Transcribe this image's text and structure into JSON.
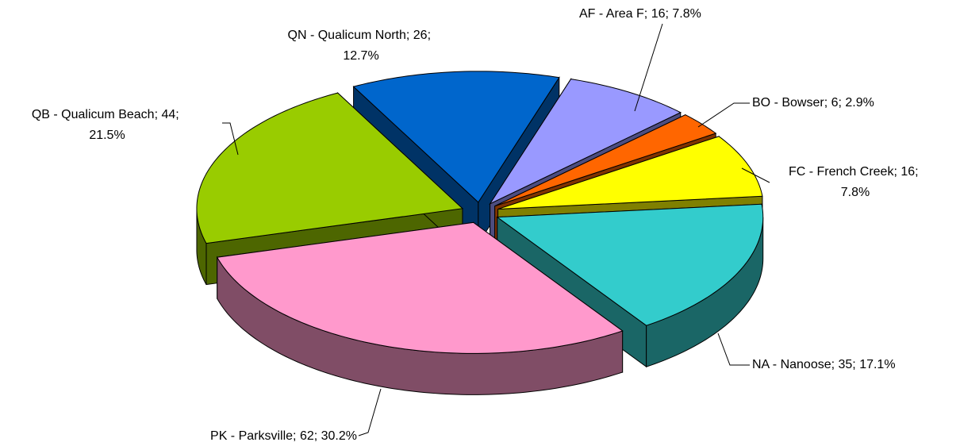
{
  "chart_data": {
    "type": "pie3d",
    "categories": [
      "QN - Qualicum North",
      "AF - Area F",
      "BO - Bowser",
      "FC - French Creek",
      "NA - Nanoose",
      "PK - Parksville",
      "QB - Qualicum Beach"
    ],
    "values": [
      26,
      16,
      6,
      16,
      35,
      62,
      44
    ],
    "percents": [
      12.7,
      7.8,
      2.9,
      7.8,
      17.1,
      30.2,
      21.5
    ],
    "percent_labels": [
      "12.7%",
      "7.8%",
      "2.9%",
      "7.8%",
      "17.1%",
      "30.2%",
      "21.5%"
    ],
    "label_separator": "; ",
    "colors": [
      "#0066cc",
      "#9999ff",
      "#ff6600",
      "#ffff00",
      "#33cccc",
      "#ff99cc",
      "#99cc00"
    ]
  }
}
